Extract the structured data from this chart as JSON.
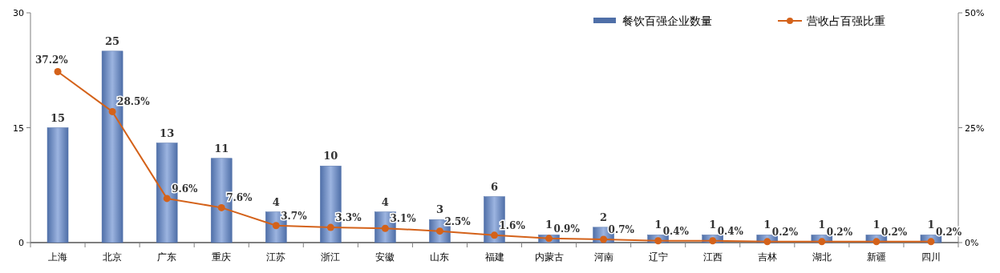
{
  "chart_data": {
    "type": "bar",
    "categories": [
      "上海",
      "北京",
      "广东",
      "重庆",
      "江苏",
      "浙江",
      "安徽",
      "山东",
      "福建",
      "内蒙古",
      "河南",
      "辽宁",
      "江西",
      "吉林",
      "湖北",
      "新疆",
      "四川"
    ],
    "series": [
      {
        "name": "餐饮百强企业数量",
        "color": "#4f6fa8",
        "values": [
          15,
          25,
          13,
          11,
          4,
          10,
          4,
          3,
          6,
          1,
          2,
          1,
          1,
          1,
          1,
          1,
          1
        ],
        "value_labels": [
          "15",
          "25",
          "13",
          "11",
          "4",
          "10",
          "4",
          "3",
          "6",
          "1",
          "2",
          "1",
          "1",
          "1",
          "1",
          "1",
          "1"
        ]
      },
      {
        "name": "营收占百强比重",
        "type": "line",
        "axis": "y2",
        "color": "#d4621a",
        "marker": "circle",
        "values": [
          37.2,
          28.5,
          9.6,
          7.6,
          3.7,
          3.3,
          3.1,
          2.5,
          1.6,
          0.9,
          0.7,
          0.4,
          0.4,
          0.2,
          0.2,
          0.2,
          0.2
        ],
        "value_labels": [
          "37.2%",
          "28.5%",
          "9.6%",
          "7.6%",
          "3.7%",
          "3.3%",
          "3.1%",
          "2.5%",
          "1.6%",
          "0.9%",
          "0.7%",
          "0.4%",
          "0.4%",
          "0.2%",
          "0.2%",
          "0.2%",
          "0.2%"
        ]
      }
    ],
    "ylim": [
      0,
      30
    ],
    "yticks": [
      0,
      15,
      30
    ],
    "y2lim": [
      0,
      50
    ],
    "y2ticks": [
      {
        "value": 0,
        "label": "0%"
      },
      {
        "value": 25,
        "label": "25%"
      },
      {
        "value": 50,
        "label": "50%"
      }
    ],
    "grid": false,
    "legend": "top right"
  }
}
